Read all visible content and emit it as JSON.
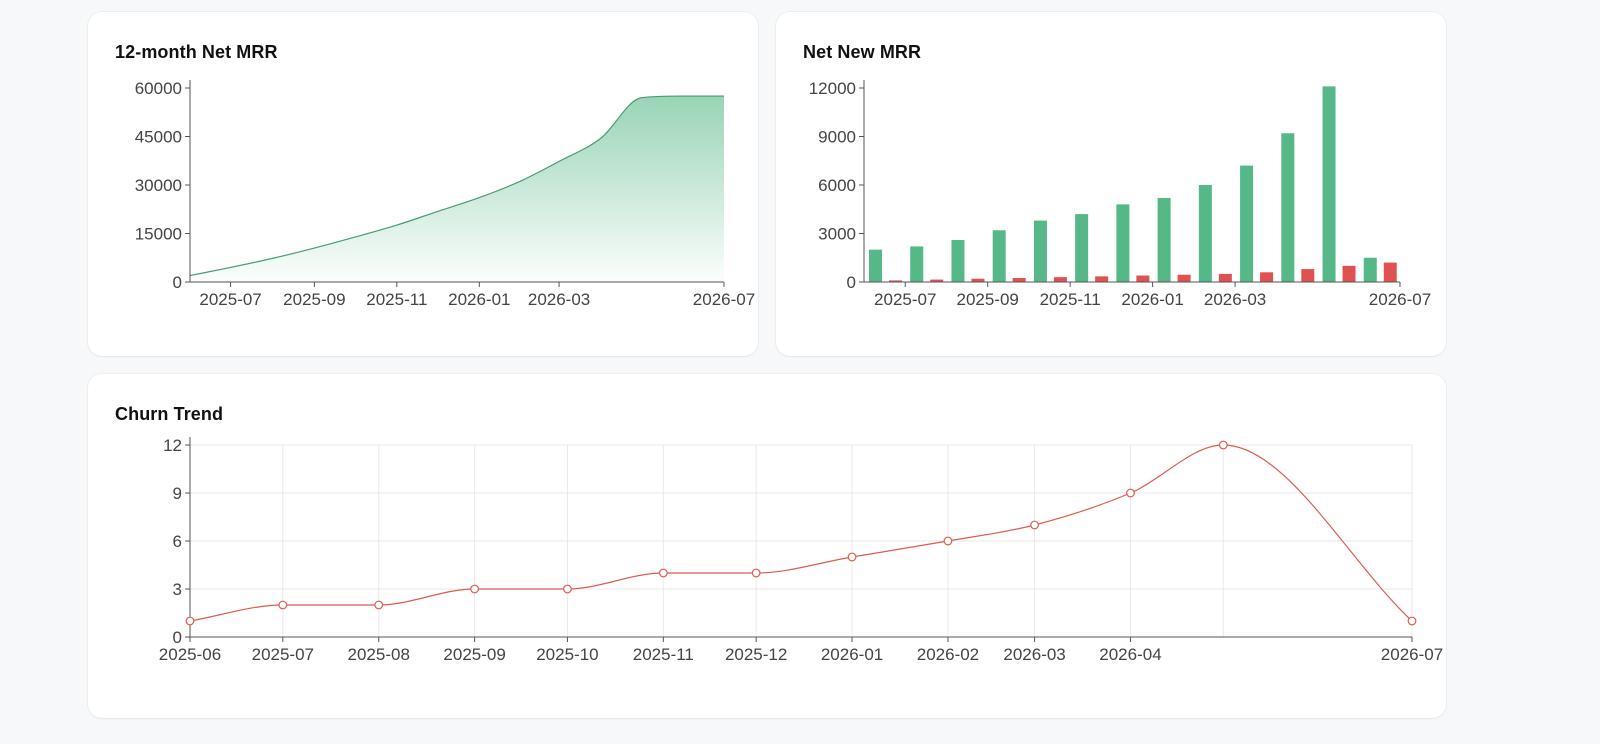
{
  "charts": {
    "mrr": {
      "title": "12-month Net MRR"
    },
    "nnm": {
      "title": "Net New MRR"
    },
    "churn": {
      "title": "Churn Trend"
    }
  },
  "colors": {
    "green": "#55b886",
    "green_line": "#4a9b72",
    "red": "#e05252",
    "red_line": "#dd5c4f",
    "axis": "#555555",
    "grid": "#e9e9e9"
  },
  "chart_data": [
    {
      "id": "mrr",
      "type": "area",
      "title": "12-month Net MRR",
      "x": [
        "2025-06-01",
        "2025-07-01",
        "2025-08-01",
        "2025-09-01",
        "2025-10-01",
        "2025-11-01",
        "2025-12-01",
        "2026-01-01",
        "2026-02-01",
        "2026-03-01",
        "2026-04-01",
        "2026-05-01",
        "2026-06-01",
        "2026-07-01"
      ],
      "values": [
        2000,
        4500,
        7300,
        10500,
        13900,
        17600,
        21800,
        26100,
        31300,
        37300,
        44500,
        57000,
        57500,
        57500
      ],
      "x_ticks": [
        "2025-07",
        "2025-09",
        "2025-11",
        "2026-01",
        "2026-03",
        "2026-07"
      ],
      "y_ticks": [
        0,
        15000,
        30000,
        45000,
        60000
      ],
      "ylim": [
        0,
        60000
      ],
      "grid": false
    },
    {
      "id": "nnm",
      "type": "bar",
      "title": "Net New MRR",
      "categories": [
        "2025-06",
        "2025-07",
        "2025-08",
        "2025-09",
        "2025-10",
        "2025-11",
        "2025-12",
        "2026-01",
        "2026-02",
        "2026-03",
        "2026-04",
        "2026-05",
        "2026-06"
      ],
      "series": [
        {
          "values": [
            2000,
            2200,
            2600,
            3200,
            3800,
            4200,
            4800,
            5200,
            6000,
            7200,
            9200,
            12100,
            1500
          ]
        },
        {
          "values": [
            100,
            150,
            200,
            250,
            300,
            350,
            400,
            450,
            500,
            600,
            800,
            1000,
            1200
          ]
        }
      ],
      "x_ticks": [
        "2025-07",
        "2025-09",
        "2025-11",
        "2026-01",
        "2026-03",
        "2026-07"
      ],
      "y_ticks": [
        0,
        3000,
        6000,
        9000,
        12000
      ],
      "ylim": [
        0,
        12000
      ],
      "grid": false
    },
    {
      "id": "churn",
      "type": "line",
      "title": "Churn Trend",
      "x": [
        "2025-06",
        "2025-07",
        "2025-08",
        "2025-09",
        "2025-10",
        "2025-11",
        "2025-12",
        "2026-01",
        "2026-02",
        "2026-03",
        "2026-04",
        "2026-05",
        "2026-07"
      ],
      "values": [
        1,
        2,
        2,
        3,
        3,
        4,
        4,
        5,
        6,
        7,
        9,
        12,
        1
      ],
      "x_ticks": [
        "2025-06",
        "2025-07",
        "2025-08",
        "2025-09",
        "2025-10",
        "2025-11",
        "2025-12",
        "2026-01",
        "2026-02",
        "2026-03",
        "2026-04",
        "2026-07"
      ],
      "y_ticks": [
        0,
        3,
        6,
        9,
        12
      ],
      "ylim": [
        0,
        12
      ],
      "grid": true
    }
  ]
}
